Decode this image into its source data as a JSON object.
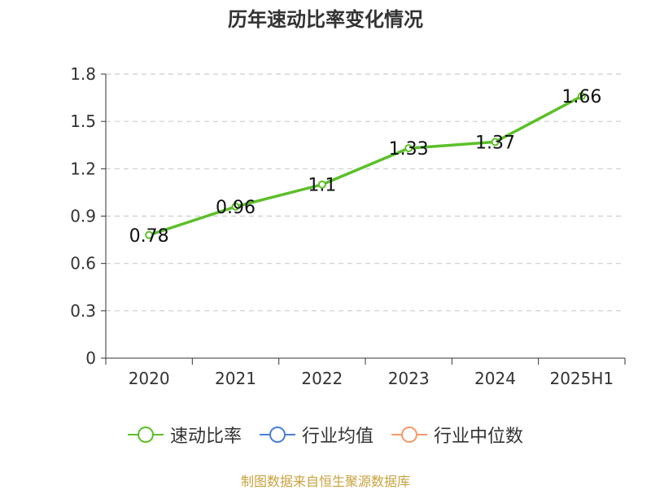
{
  "chart_data": {
    "type": "line",
    "title": "历年速动比率变化情况",
    "categories": [
      "2020",
      "2021",
      "2022",
      "2023",
      "2024",
      "2025H1"
    ],
    "series": [
      {
        "name": "速动比率",
        "color": "#5cbf2a",
        "values": [
          0.78,
          0.96,
          1.1,
          1.33,
          1.37,
          1.66
        ]
      }
    ],
    "data_labels": [
      "0.78",
      "0.96",
      "1.1",
      "1.33",
      "1.37",
      "1.66"
    ],
    "ylim": [
      0,
      1.8
    ],
    "yticks": [
      0,
      0.3,
      0.6,
      0.9,
      1.2,
      1.5,
      1.8
    ],
    "ytick_labels": [
      "0",
      "0.3",
      "0.6",
      "0.9",
      "1.2",
      "1.5",
      "1.8"
    ],
    "grid": "horizontal dashed",
    "legend": {
      "placement": "bottom",
      "items": [
        {
          "label": "速动比率",
          "color": "#5cbf2a"
        },
        {
          "label": "行业均值",
          "color": "#4a7fd6"
        },
        {
          "label": "行业中位数",
          "color": "#f59a6a"
        }
      ]
    }
  },
  "source": "制图数据来自恒生聚源数据库"
}
